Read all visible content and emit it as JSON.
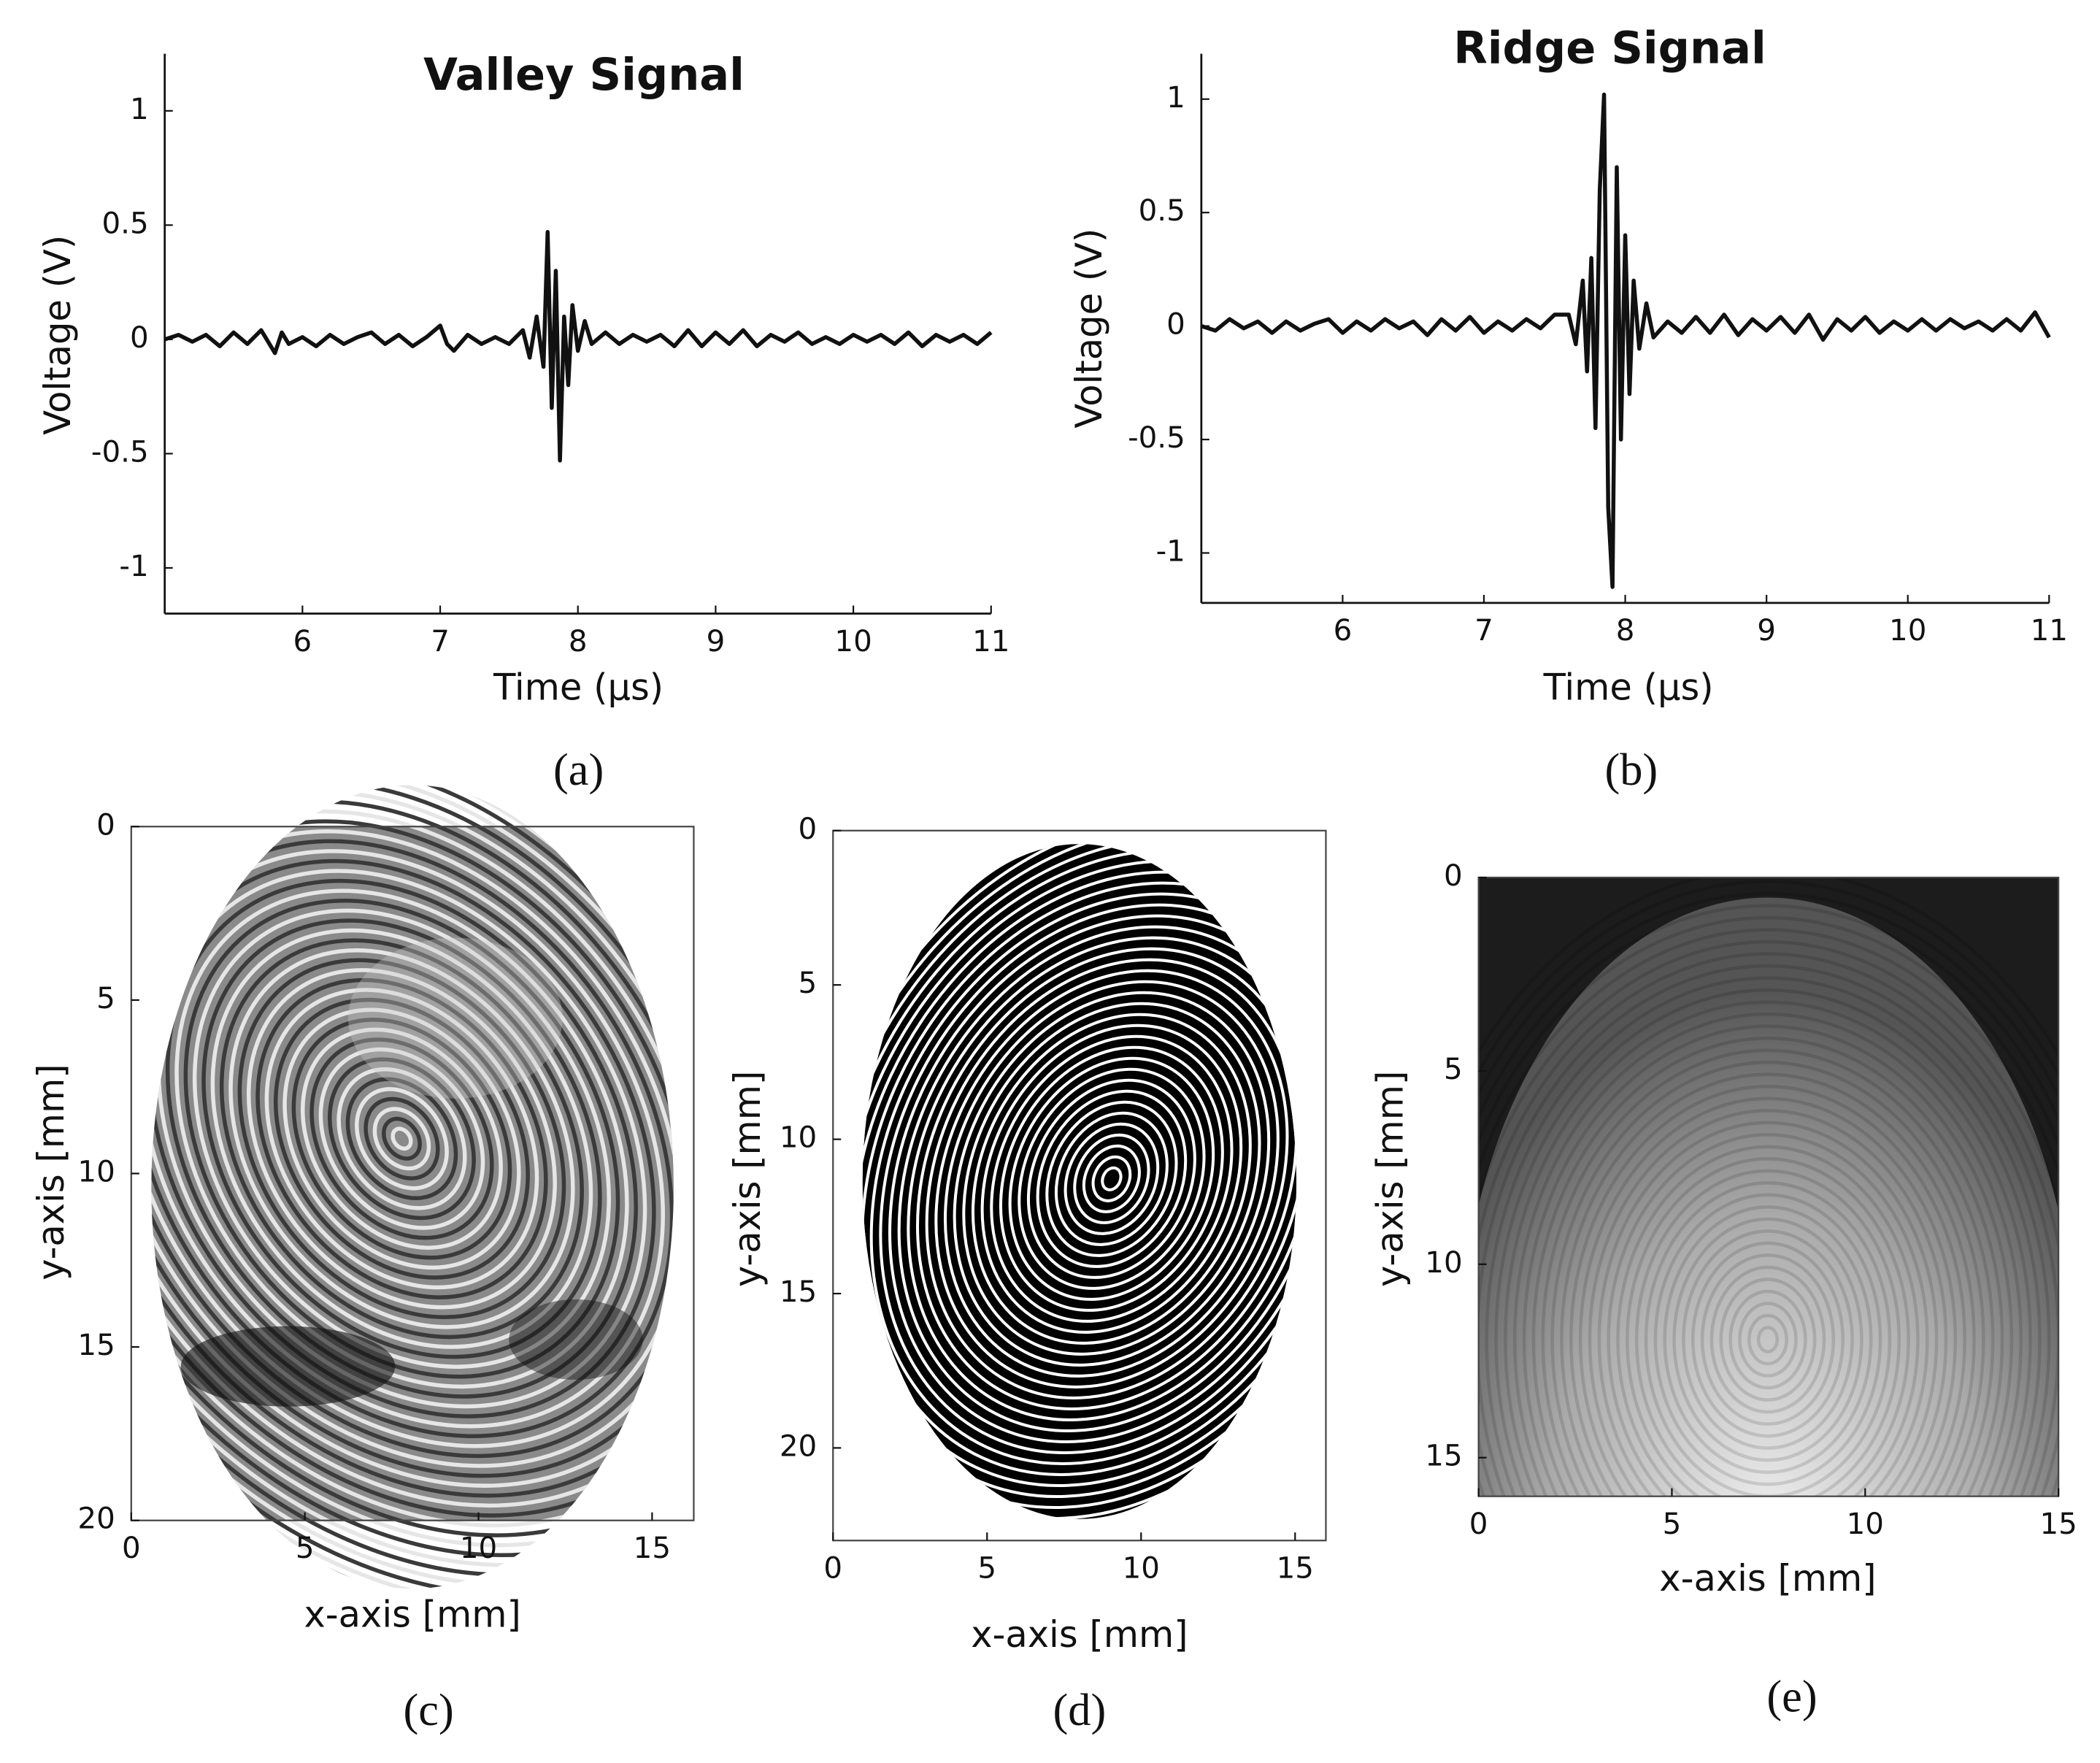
{
  "chart_data": [
    {
      "type": "line",
      "title": "Valley Signal",
      "xlabel": "Time (µs)",
      "ylabel": "Voltage (V)",
      "caption": "(a)",
      "color": "#111111",
      "xlim": [
        5,
        11
      ],
      "ylim": [
        -1.2,
        1.25
      ],
      "xticks": [
        6,
        7,
        8,
        9,
        10,
        11
      ],
      "yticks": [
        -1,
        -0.5,
        0,
        0.5,
        1
      ],
      "x": [
        5.0,
        5.1,
        5.2,
        5.3,
        5.4,
        5.5,
        5.6,
        5.7,
        5.8,
        5.85,
        5.9,
        6.0,
        6.1,
        6.2,
        6.3,
        6.4,
        6.5,
        6.6,
        6.7,
        6.8,
        6.9,
        7.0,
        7.05,
        7.1,
        7.2,
        7.3,
        7.4,
        7.5,
        7.6,
        7.65,
        7.7,
        7.75,
        7.78,
        7.81,
        7.84,
        7.87,
        7.9,
        7.93,
        7.96,
        8.0,
        8.05,
        8.1,
        8.2,
        8.3,
        8.4,
        8.5,
        8.6,
        8.7,
        8.8,
        8.9,
        9.0,
        9.1,
        9.2,
        9.3,
        9.4,
        9.5,
        9.6,
        9.7,
        9.8,
        9.9,
        10.0,
        10.1,
        10.2,
        10.3,
        10.4,
        10.5,
        10.6,
        10.7,
        10.8,
        10.9,
        11.0
      ],
      "values": [
        0,
        0.02,
        -0.01,
        0.02,
        -0.03,
        0.03,
        -0.02,
        0.04,
        -0.06,
        0.03,
        -0.02,
        0.01,
        -0.03,
        0.02,
        -0.02,
        0.01,
        0.03,
        -0.02,
        0.02,
        -0.03,
        0.01,
        0.06,
        -0.02,
        -0.05,
        0.02,
        -0.02,
        0.01,
        -0.02,
        0.04,
        -0.08,
        0.1,
        -0.12,
        0.47,
        -0.3,
        0.3,
        -0.53,
        0.1,
        -0.2,
        0.15,
        -0.05,
        0.08,
        -0.02,
        0.03,
        -0.02,
        0.02,
        -0.01,
        0.02,
        -0.03,
        0.04,
        -0.03,
        0.03,
        -0.02,
        0.04,
        -0.03,
        0.02,
        -0.01,
        0.03,
        -0.02,
        0.01,
        -0.02,
        0.02,
        -0.01,
        0.02,
        -0.02,
        0.03,
        -0.03,
        0.02,
        -0.01,
        0.02,
        -0.02,
        0.03
      ]
    },
    {
      "type": "line",
      "title": "Ridge Signal",
      "xlabel": "Time (µs)",
      "ylabel": "Voltage (V)",
      "caption": "(b)",
      "color": "#111111",
      "xlim": [
        5,
        11
      ],
      "ylim": [
        -1.22,
        1.2
      ],
      "xticks": [
        6,
        7,
        8,
        9,
        10,
        11
      ],
      "yticks": [
        -1,
        -0.5,
        0,
        0.5,
        1
      ],
      "x": [
        5.0,
        5.1,
        5.2,
        5.3,
        5.4,
        5.5,
        5.6,
        5.7,
        5.8,
        5.9,
        6.0,
        6.1,
        6.2,
        6.3,
        6.4,
        6.5,
        6.6,
        6.7,
        6.8,
        6.9,
        7.0,
        7.1,
        7.2,
        7.3,
        7.4,
        7.5,
        7.6,
        7.65,
        7.7,
        7.73,
        7.76,
        7.79,
        7.82,
        7.85,
        7.88,
        7.91,
        7.94,
        7.97,
        8.0,
        8.03,
        8.06,
        8.1,
        8.15,
        8.2,
        8.3,
        8.4,
        8.5,
        8.6,
        8.7,
        8.8,
        8.9,
        9.0,
        9.1,
        9.2,
        9.3,
        9.4,
        9.5,
        9.6,
        9.7,
        9.8,
        9.9,
        10.0,
        10.1,
        10.2,
        10.3,
        10.4,
        10.5,
        10.6,
        10.7,
        10.8,
        10.9,
        11.0
      ],
      "values": [
        0,
        -0.02,
        0.03,
        -0.01,
        0.02,
        -0.03,
        0.02,
        -0.02,
        0.01,
        0.03,
        -0.03,
        0.02,
        -0.02,
        0.03,
        -0.01,
        0.02,
        -0.04,
        0.03,
        -0.02,
        0.04,
        -0.03,
        0.02,
        -0.02,
        0.03,
        -0.01,
        0.05,
        0.05,
        -0.08,
        0.2,
        -0.2,
        0.3,
        -0.45,
        0.6,
        1.02,
        -0.8,
        -1.15,
        0.7,
        -0.5,
        0.4,
        -0.3,
        0.2,
        -0.1,
        0.1,
        -0.05,
        0.02,
        -0.03,
        0.04,
        -0.03,
        0.05,
        -0.04,
        0.03,
        -0.02,
        0.04,
        -0.03,
        0.05,
        -0.06,
        0.03,
        -0.02,
        0.04,
        -0.03,
        0.02,
        -0.02,
        0.03,
        -0.02,
        0.03,
        -0.01,
        0.02,
        -0.02,
        0.03,
        -0.02,
        0.06,
        -0.05
      ]
    },
    {
      "type": "image",
      "xlabel": "x-axis [mm]",
      "ylabel": "y-axis [mm]",
      "caption": "(c)",
      "y_inverted": true,
      "xlim": [
        0,
        16.2
      ],
      "ylim": [
        0,
        20
      ],
      "xticks": [
        0,
        5,
        10,
        15
      ],
      "yticks": [
        0,
        5,
        10,
        15,
        20
      ]
    },
    {
      "type": "image",
      "xlabel": "x-axis [mm]",
      "ylabel": "y-axis [mm]",
      "caption": "(d)",
      "y_inverted": true,
      "xlim": [
        0,
        16
      ],
      "ylim": [
        0,
        23
      ],
      "xticks": [
        0,
        5,
        10,
        15
      ],
      "yticks": [
        0,
        5,
        10,
        15,
        20
      ]
    },
    {
      "type": "image",
      "xlabel": "x-axis [mm]",
      "ylabel": "y-axis [mm]",
      "caption": "(e)",
      "y_inverted": true,
      "xlim": [
        0,
        15
      ],
      "ylim": [
        0,
        16
      ],
      "xticks": [
        0,
        5,
        10,
        15
      ],
      "yticks": [
        0,
        5,
        10,
        15
      ]
    }
  ]
}
